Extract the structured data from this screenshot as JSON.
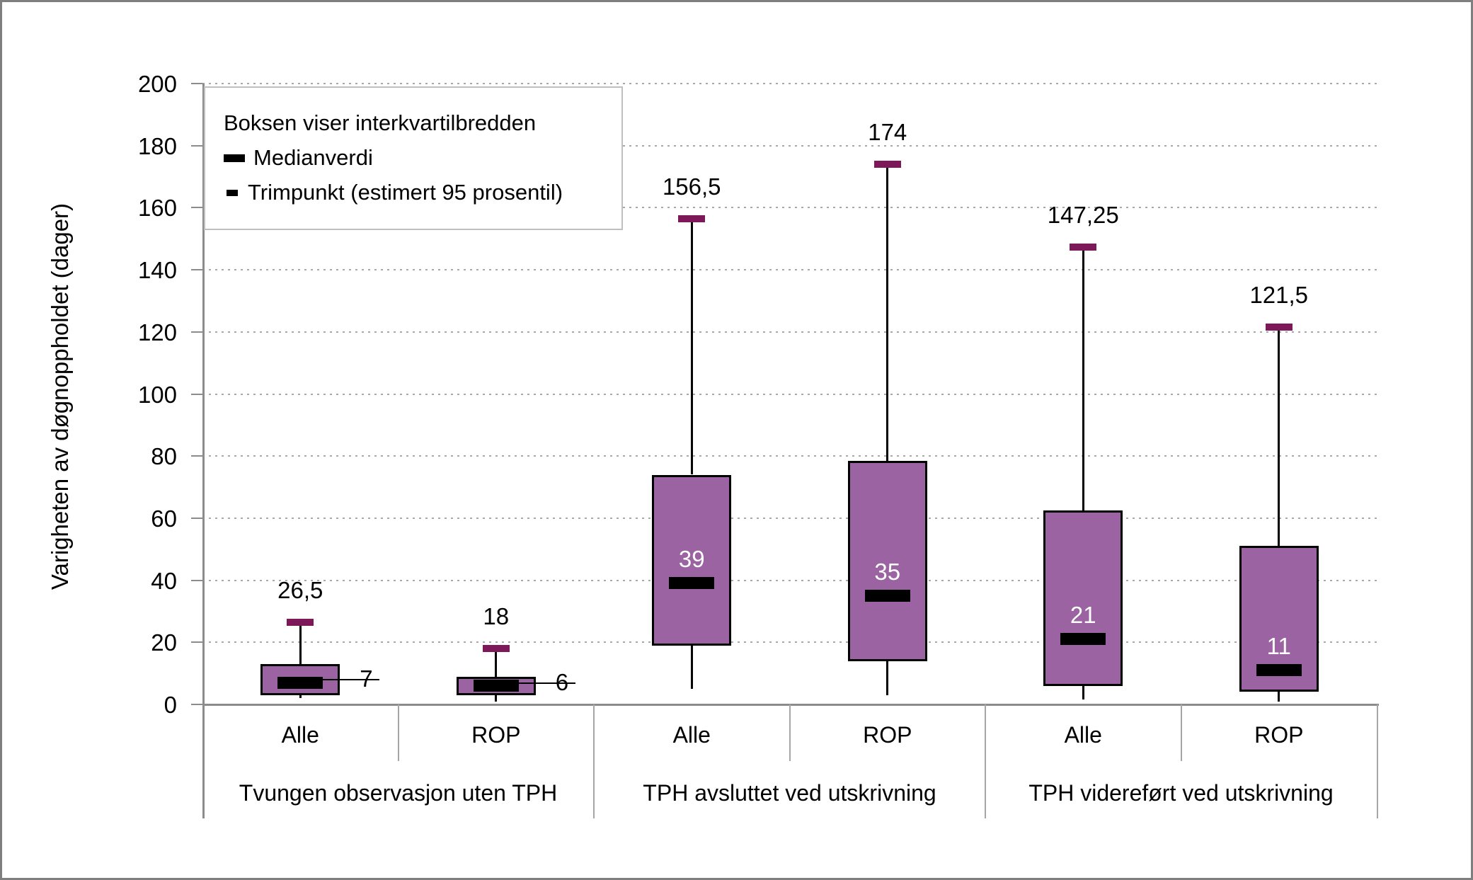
{
  "y_axis": {
    "title": "Varigheten av døgnoppholdet (dager)",
    "min": 0,
    "max": 200,
    "step": 20,
    "tick_labels": [
      "0",
      "20",
      "40",
      "60",
      "80",
      "100",
      "120",
      "140",
      "160",
      "180",
      "200"
    ]
  },
  "legend": {
    "line1": "Boksen viser interkvartilbredden",
    "median_label": "Medianverdi",
    "trim_label": "Trimpunkt (estimert 95 prosentil)"
  },
  "colors": {
    "box_fill": "#9b63a2",
    "box_border": "#000000",
    "median": "#000000",
    "trim_point": "#7d1958",
    "grid": "#a9a9a9",
    "axis": "#8c8c8c",
    "table_line": "#a6a6a6",
    "legend_border": "#bfbfbf",
    "inside_label": "#ffffff"
  },
  "chart_data": {
    "type": "boxplot",
    "title": "",
    "ylabel": "Varigheten av døgnoppholdet (dager)",
    "ylim": [
      0,
      200
    ],
    "grid": true,
    "legend_position": "top-left",
    "groups": [
      {
        "label": "Tvungen observasjon uten TPH",
        "items": [
          {
            "label": "Alle",
            "q1": 3,
            "q3": 13,
            "median": 7,
            "median_text": "7",
            "whisker_low": 2,
            "trim": 26.5,
            "trim_text": "26,5",
            "median_label_style": "outside"
          },
          {
            "label": "ROP",
            "q1": 3,
            "q3": 9,
            "median": 6,
            "median_text": "6",
            "whisker_low": 1,
            "trim": 18,
            "trim_text": "18",
            "median_label_style": "outside"
          }
        ]
      },
      {
        "label": "TPH avsluttet ved utskrivning",
        "items": [
          {
            "label": "Alle",
            "q1": 19,
            "q3": 74,
            "median": 39,
            "median_text": "39",
            "whisker_low": 5,
            "trim": 156.5,
            "trim_text": "156,5",
            "median_label_style": "inside"
          },
          {
            "label": "ROP",
            "q1": 14,
            "q3": 78.5,
            "median": 35,
            "median_text": "35",
            "whisker_low": 3,
            "trim": 174,
            "trim_text": "174",
            "median_label_style": "inside"
          }
        ]
      },
      {
        "label": "TPH videreført ved utskrivning",
        "items": [
          {
            "label": "Alle",
            "q1": 6,
            "q3": 62.5,
            "median": 21,
            "median_text": "21",
            "whisker_low": 1.5,
            "trim": 147.25,
            "trim_text": "147,25",
            "median_label_style": "inside"
          },
          {
            "label": "ROP",
            "q1": 4,
            "q3": 51,
            "median": 11,
            "median_text": "11",
            "whisker_low": 1,
            "trim": 121.5,
            "trim_text": "121,5",
            "median_label_style": "inside"
          }
        ]
      }
    ]
  }
}
